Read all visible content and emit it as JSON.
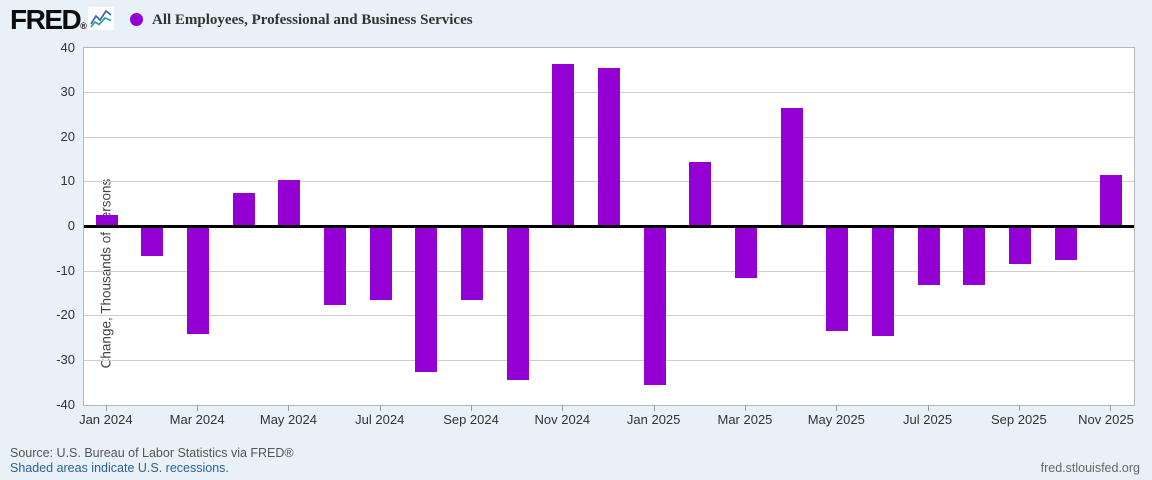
{
  "header": {
    "logo_text": "FRED",
    "registered_mark": "®",
    "legend_marker_color": "#9400d3"
  },
  "chart_data": {
    "type": "bar",
    "title": "All Employees, Professional and Business Services",
    "xlabel": "",
    "ylabel": "Change, Thousands of Persons",
    "ylim": [
      -40,
      40
    ],
    "ytick_interval": 10,
    "ytick_labels": [
      "40",
      "30",
      "20",
      "10",
      "0",
      "-10",
      "-20",
      "-30",
      "-40"
    ],
    "grid": true,
    "bar_color": "#9400d3",
    "categories": [
      "Jan 2024",
      "Feb 2024",
      "Mar 2024",
      "Apr 2024",
      "May 2024",
      "Jun 2024",
      "Jul 2024",
      "Aug 2024",
      "Sep 2024",
      "Oct 2024",
      "Nov 2024",
      "Dec 2024",
      "Jan 2025",
      "Feb 2025",
      "Mar 2025",
      "Apr 2025",
      "May 2025",
      "Jun 2025",
      "Jul 2025",
      "Aug 2025",
      "Sep 2025",
      "Oct 2025",
      "Nov 2025"
    ],
    "values": [
      2.5,
      -6.5,
      -24,
      7.5,
      10.5,
      -17.5,
      -16.5,
      -32.5,
      -16.5,
      -34.5,
      36.5,
      35.5,
      -35.5,
      14.5,
      -11.5,
      26.5,
      -23.5,
      -24.5,
      -13,
      -13,
      -8.5,
      -7.5,
      11.5
    ],
    "xtick_labels": [
      "Jan 2024",
      "Mar 2024",
      "May 2024",
      "Jul 2024",
      "Sep 2024",
      "Nov 2024",
      "Jan 2025",
      "Mar 2025",
      "May 2025",
      "Jul 2025",
      "Sep 2025",
      "Nov 2025"
    ],
    "zero_line_color": "#000000"
  },
  "footer": {
    "source_line": "Source: U.S. Bureau of Labor Statistics via FRED®",
    "recession_note": "Shaded areas indicate U.S. recessions.",
    "site_link": "fred.stlouisfed.org"
  }
}
